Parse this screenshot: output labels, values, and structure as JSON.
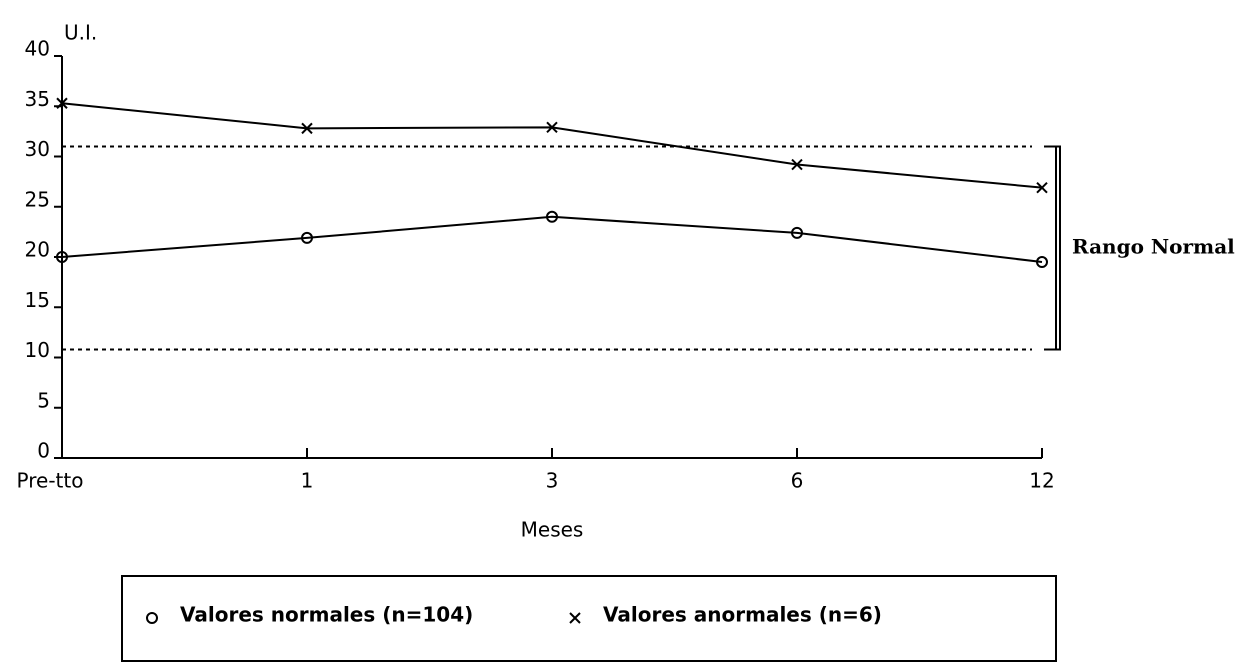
{
  "chart_data": {
    "type": "line",
    "y_label": "U.I.",
    "x_label": "Meses",
    "categories": [
      "Pre-tto",
      "1",
      "3",
      "6",
      "12"
    ],
    "series": [
      {
        "name": "Valores normales (n=104)",
        "color": "#000000",
        "marker": "o",
        "values": [
          20,
          21.9,
          24,
          22.4,
          19.5
        ]
      },
      {
        "name": "Valores anormales (n=6)",
        "color": "#000000",
        "marker": "x",
        "values": [
          35.3,
          32.8,
          32.9,
          29.2,
          26.9
        ]
      }
    ],
    "ylim": [
      0,
      40
    ],
    "yticks": [
      0,
      5,
      10,
      15,
      20,
      25,
      30,
      35,
      40
    ],
    "reference_lines": [
      {
        "value": 31
      },
      {
        "value": 10.8
      }
    ],
    "annotation": "Rango Normal",
    "legend": "bottom"
  }
}
